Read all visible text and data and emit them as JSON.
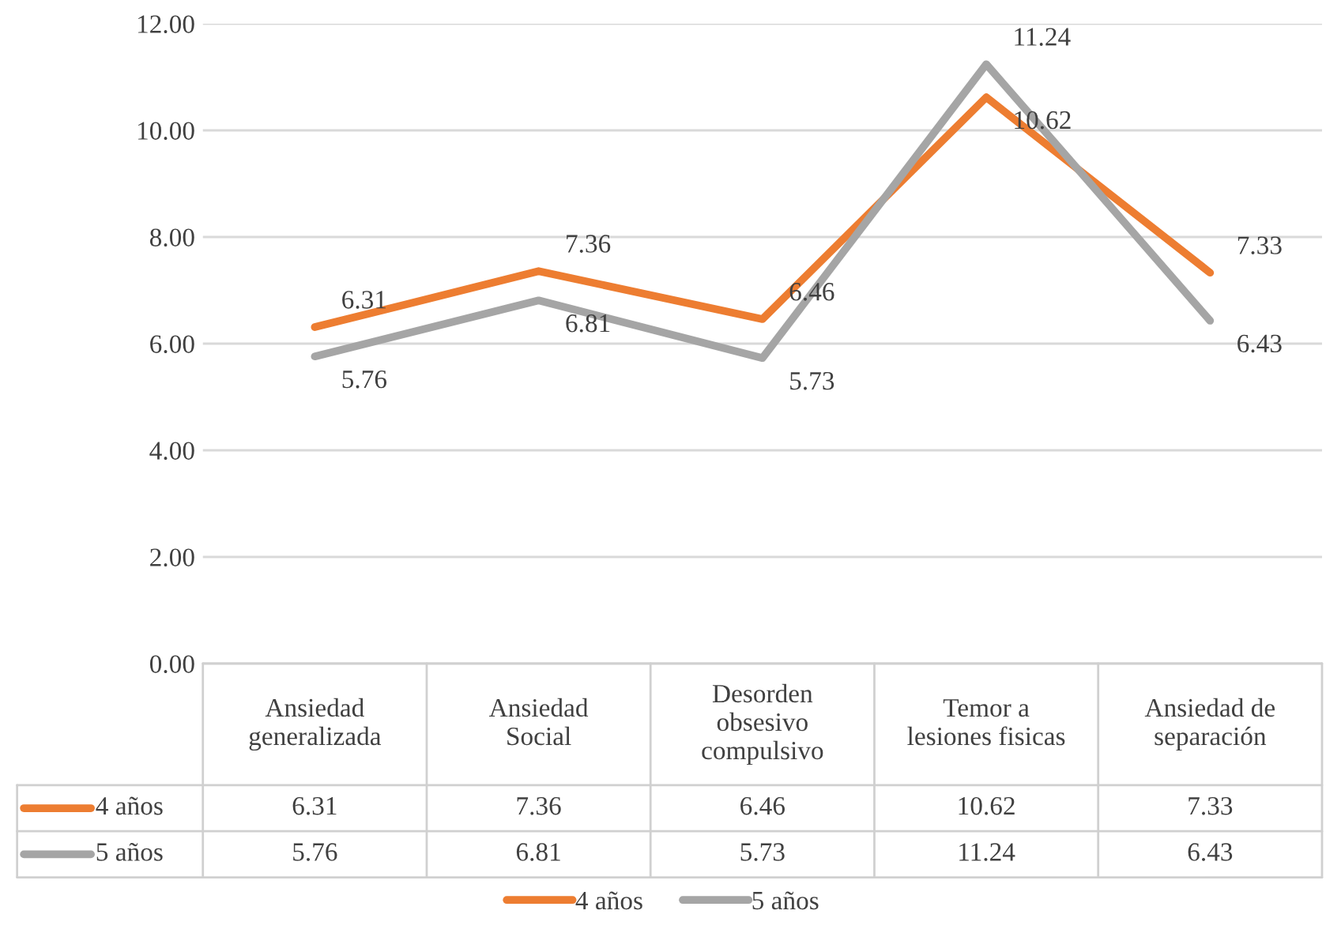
{
  "chart_data": {
    "type": "line",
    "categories": [
      "Ansiedad\ngeneralizada",
      "Ansiedad\nSocial",
      "Desorden\nobsesivo\ncompulsivo",
      "Temor a\nlesiones fisicas",
      "Ansiedad de\nseparación"
    ],
    "series": [
      {
        "name": "4 años",
        "color": "#ed7d31",
        "values": [
          6.31,
          7.36,
          6.46,
          10.62,
          7.33
        ]
      },
      {
        "name": "5 años",
        "color": "#a5a5a5",
        "values": [
          5.76,
          6.81,
          5.73,
          11.24,
          6.43
        ]
      }
    ],
    "annotations": [
      {
        "text": "6.31",
        "x": "Ansiedad\ngeneralizada",
        "y": 6.31
      },
      {
        "text": "7.36",
        "x": "Ansiedad\nSocial",
        "y": 7.36
      },
      {
        "text": "6.46",
        "x": "Desorden\nobsesivo\ncompulsivo",
        "y": 6.46
      },
      {
        "text": "10.62",
        "x": "Temor a\nlesiones fisicas",
        "y": 10.62
      },
      {
        "text": "7.33",
        "x": "Ansiedad de\nseparación",
        "y": 7.33
      },
      {
        "text": "5.76",
        "x": "Ansiedad\ngeneralizada",
        "y": 5.76
      },
      {
        "text": "6.81",
        "x": "Ansiedad\nSocial",
        "y": 6.81
      },
      {
        "text": "5.73",
        "x": "Desorden\nobsesivo\ncompulsivo",
        "y": 5.73
      },
      {
        "text": "11.24",
        "x": "Temor a\nlesiones fisicas",
        "y": 11.24
      },
      {
        "text": "6.43",
        "x": "Ansiedad de\nseparación",
        "y": 6.43
      }
    ],
    "ylim": [
      0,
      12
    ],
    "yticks": [
      {
        "value": 0,
        "label": "0.00"
      },
      {
        "value": 2,
        "label": "2.00"
      },
      {
        "value": 4,
        "label": "4.00"
      },
      {
        "value": 6,
        "label": "6.00"
      },
      {
        "value": 8,
        "label": "8.00"
      },
      {
        "value": 10,
        "label": "10.00"
      },
      {
        "value": 12,
        "label": "12.00"
      }
    ],
    "grid": "y",
    "legend": "bottom",
    "data_labels": true,
    "marker": "none",
    "line_style": "solid",
    "tick_labels": "y"
  }
}
